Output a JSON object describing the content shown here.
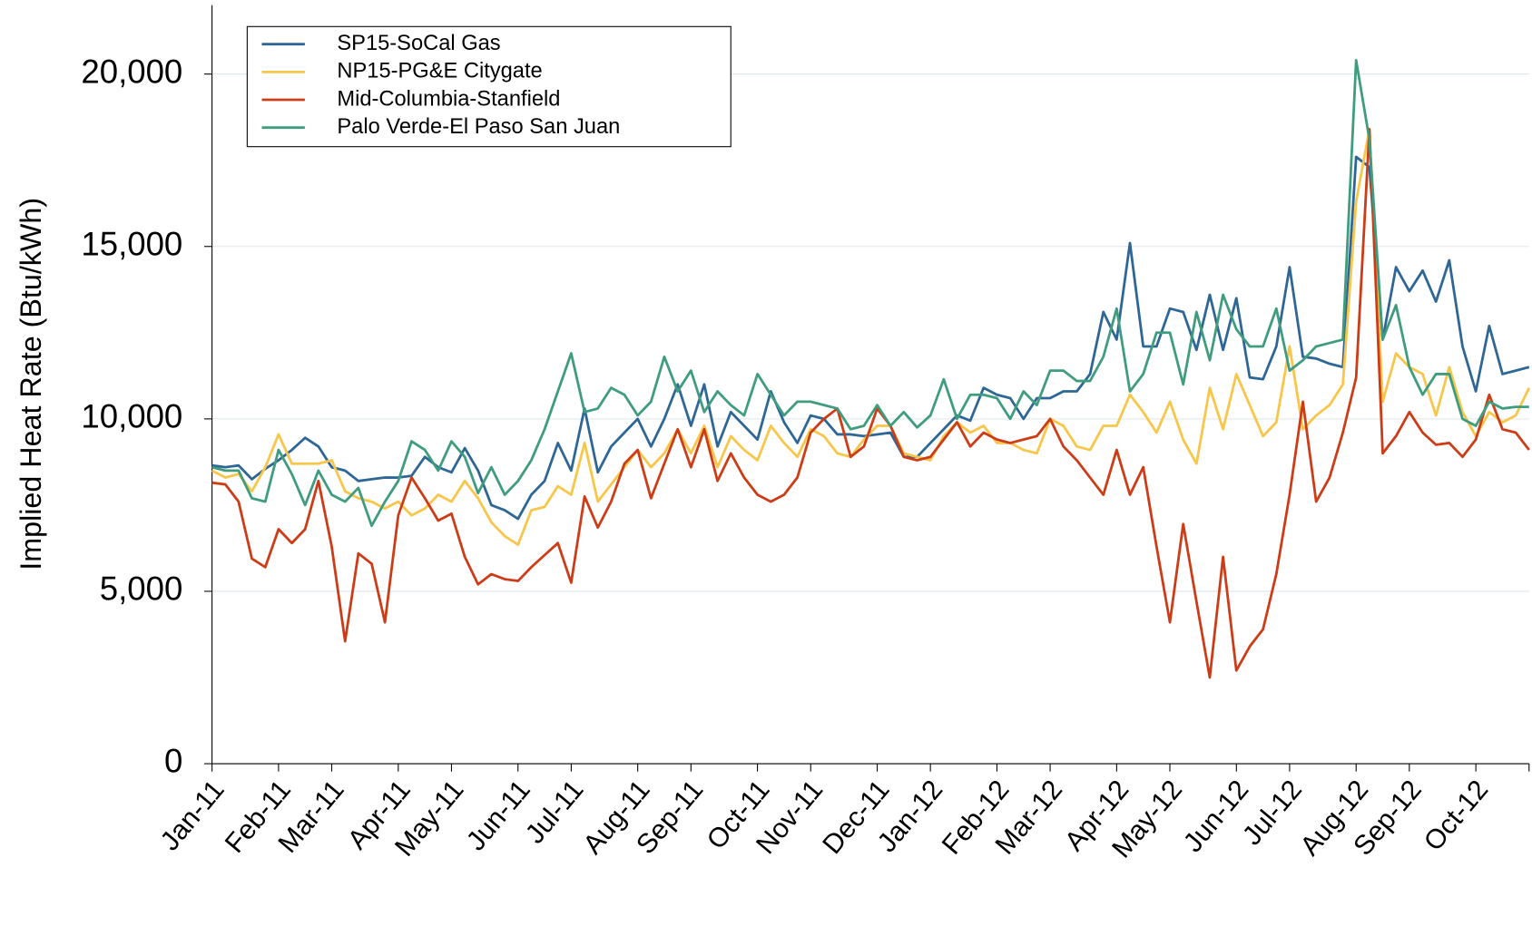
{
  "chart_data": {
    "type": "line",
    "y_label": "Implied Heat Rate (Btu/kWh)",
    "categories": [
      "Jan-11",
      null,
      null,
      null,
      null,
      "Feb-11",
      null,
      null,
      null,
      "Mar-11",
      null,
      null,
      null,
      null,
      "Apr-11",
      null,
      null,
      null,
      "May-11",
      null,
      null,
      null,
      null,
      "Jun-11",
      null,
      null,
      null,
      "Jul-11",
      null,
      null,
      null,
      null,
      "Aug-11",
      null,
      null,
      null,
      "Sep-11",
      null,
      null,
      null,
      null,
      "Oct-11",
      null,
      null,
      null,
      "Nov-11",
      null,
      null,
      null,
      null,
      "Dec-11",
      null,
      null,
      null,
      "Jan-12",
      null,
      null,
      null,
      null,
      "Feb-12",
      null,
      null,
      null,
      "Mar-12",
      null,
      null,
      null,
      null,
      "Apr-12",
      null,
      null,
      null,
      "May-12",
      null,
      null,
      null,
      null,
      "Jun-12",
      null,
      null,
      null,
      "Jul-12",
      null,
      null,
      null,
      null,
      "Aug-12",
      null,
      null,
      null,
      "Sep-12",
      null,
      null,
      null,
      null,
      "Oct-12",
      null,
      null,
      null,
      null
    ],
    "series": [
      {
        "name": "SP15-SoCal Gas",
        "color": "#2e6796",
        "values": [
          8650,
          8600,
          8650,
          8250,
          8550,
          8800,
          9100,
          9450,
          9200,
          8600,
          8500,
          8200,
          8250,
          8300,
          8300,
          8350,
          8900,
          8600,
          8450,
          9150,
          8500,
          7500,
          7350,
          7100,
          7800,
          8200,
          9300,
          8500,
          10300,
          8450,
          9200,
          9600,
          10000,
          9200,
          10000,
          11000,
          9800,
          11000,
          9200,
          10200,
          9800,
          9400,
          10800,
          9900,
          9300,
          10100,
          10000,
          9550,
          9550,
          9500,
          9550,
          9600,
          8900,
          8900,
          9300,
          9700,
          10100,
          9950,
          10900,
          10700,
          10600,
          10000,
          10600,
          10600,
          10800,
          10800,
          11300,
          13100,
          12300,
          15100,
          12100,
          12100,
          13200,
          13100,
          12000,
          13600,
          12000,
          13500,
          11200,
          11150,
          12100,
          14400,
          11800,
          11750,
          11600,
          11500,
          17600,
          17300,
          12300,
          14400,
          13700,
          14300,
          13400,
          14600,
          12100,
          10800,
          12700,
          11300,
          11400,
          11500
        ]
      },
      {
        "name": "NP15-PG&E Citygate",
        "color": "#f7c64a",
        "values": [
          8500,
          8300,
          8400,
          7900,
          8600,
          9550,
          8700,
          8700,
          8700,
          8800,
          7900,
          7700,
          7600,
          7400,
          7600,
          7200,
          7400,
          7800,
          7600,
          8200,
          7700,
          7000,
          6600,
          6350,
          7350,
          7450,
          8050,
          7800,
          9300,
          7600,
          8100,
          8600,
          9100,
          8600,
          9000,
          9700,
          9000,
          9800,
          8600,
          9500,
          9100,
          8800,
          9800,
          9300,
          8900,
          9700,
          9500,
          9000,
          8900,
          9400,
          9800,
          9800,
          9000,
          8900,
          8800,
          9500,
          9900,
          9600,
          9800,
          9300,
          9300,
          9100,
          9000,
          10000,
          9800,
          9200,
          9100,
          9800,
          9800,
          10700,
          10200,
          9600,
          10500,
          9400,
          8700,
          10900,
          9700,
          11300,
          10400,
          9500,
          9900,
          12100,
          9700,
          10100,
          10400,
          11000,
          16300,
          18400,
          10500,
          11900,
          11500,
          11300,
          10100,
          11500,
          10200,
          9500,
          10200,
          9900,
          10100,
          10900
        ]
      },
      {
        "name": "Mid-Columbia-Stanfield",
        "color": "#cc3d17",
        "values": [
          8150,
          8100,
          7600,
          5950,
          5700,
          6800,
          6400,
          6800,
          8200,
          6300,
          3550,
          6100,
          5800,
          4100,
          7200,
          8300,
          7700,
          7050,
          7250,
          6000,
          5200,
          5500,
          5350,
          5300,
          5700,
          6050,
          6400,
          5250,
          7750,
          6850,
          7600,
          8700,
          9100,
          7700,
          8700,
          9700,
          8600,
          9700,
          8200,
          9000,
          8300,
          7800,
          7600,
          7800,
          8300,
          9600,
          10000,
          10300,
          8900,
          9200,
          10300,
          9800,
          8900,
          8800,
          8900,
          9400,
          9900,
          9200,
          9600,
          9400,
          9300,
          9400,
          9500,
          10000,
          9200,
          8800,
          8300,
          7800,
          9100,
          7800,
          8600,
          6300,
          4100,
          6950,
          4700,
          2500,
          6000,
          2700,
          3400,
          3900,
          5500,
          7800,
          10500,
          7600,
          8300,
          9600,
          11200,
          18400,
          9000,
          9500,
          10200,
          9600,
          9250,
          9300,
          8900,
          9400,
          10700,
          9700,
          9600,
          9100
        ]
      },
      {
        "name": "Palo Verde-El Paso San Juan",
        "color": "#3f9c7f",
        "values": [
          8600,
          8500,
          8500,
          7700,
          7600,
          9100,
          8400,
          7500,
          8500,
          7800,
          7600,
          8000,
          6900,
          7600,
          8200,
          9350,
          9100,
          8500,
          9350,
          8900,
          7850,
          8600,
          7800,
          8200,
          8800,
          9700,
          10800,
          11900,
          10200,
          10300,
          10900,
          10700,
          10100,
          10500,
          11800,
          10800,
          11400,
          10200,
          10800,
          10400,
          10100,
          11300,
          10700,
          10100,
          10500,
          10500,
          10400,
          10300,
          9700,
          9800,
          10400,
          9800,
          10200,
          9750,
          10100,
          11150,
          10000,
          10700,
          10700,
          10600,
          10000,
          10800,
          10400,
          11400,
          11400,
          11100,
          11100,
          11800,
          13200,
          10800,
          11300,
          12500,
          12500,
          11000,
          13100,
          11700,
          13600,
          12600,
          12100,
          12100,
          13200,
          11400,
          11700,
          12100,
          12200,
          12300,
          20400,
          18100,
          12300,
          13300,
          11500,
          10700,
          11300,
          11300,
          10000,
          9800,
          10500,
          10300,
          10350,
          10350
        ]
      }
    ],
    "ylim": [
      0,
      22000
    ],
    "yticks": [
      0,
      {
        "value": 5000,
        "label": "5,000"
      },
      {
        "value": 10000,
        "label": "10,000"
      },
      {
        "value": 15000,
        "label": "15,000"
      },
      {
        "value": 20000,
        "label": "20,000"
      }
    ],
    "grid": true,
    "legend": "upper left"
  }
}
